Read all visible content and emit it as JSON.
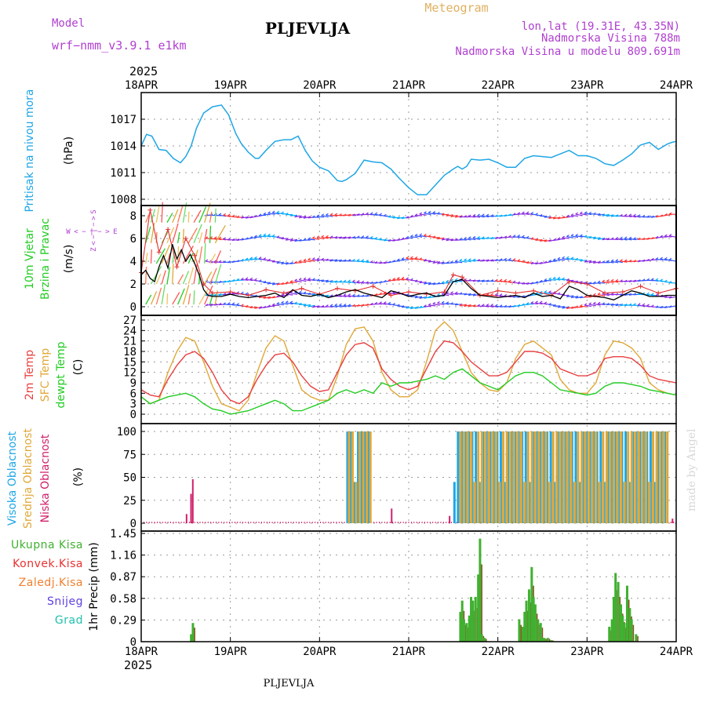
{
  "header": {
    "model_label": "Model",
    "model_value": "wrf−nmm_v3.9.1  e1km",
    "station": "PLJEVLJA",
    "meteogram": "Meteogram",
    "lonlat": "lon,lat (19.31E, 43.35N)",
    "altitude": "Nadmorska Visina 788m",
    "altitude_model": "Nadmorska Visina u modelu 809.691m",
    "watermark": "made by Angel",
    "footer_station": "PLJEVLJA"
  },
  "time_axis": {
    "year": "2025",
    "labels": [
      "18APR",
      "19APR",
      "20APR",
      "21APR",
      "22APR",
      "23APR",
      "24APR"
    ]
  },
  "colors": {
    "pressure": "#1ea6e6",
    "wind_speed": "#000000",
    "gust": "#e03030",
    "temp_2m": "#e84040",
    "temp_sfc": "#e0a838",
    "dewpoint": "#22cc22",
    "cloud_high": "#1ea6e6",
    "cloud_mid": "#e0a838",
    "cloud_low": "#d0206a",
    "precip_total": "#40b030",
    "precip_conv": "#e83030",
    "precip_frozen": "#f08030",
    "snow": "#6040e0",
    "hail": "#20c0b0",
    "station": "#000000",
    "model": "#b040d0",
    "meteogram": "#e0b060"
  },
  "chart_data": [
    {
      "type": "line",
      "panel": "pressure",
      "ylabel": [
        "Pritisak na nivou mora",
        "(hPa)"
      ],
      "ylim": [
        1008,
        1019.5
      ],
      "yticks": [
        "1008",
        "1011",
        "1014",
        "1017"
      ],
      "series": [
        {
          "x": [
            0,
            0.06,
            0.12,
            0.2,
            0.28,
            0.36,
            0.44,
            0.5,
            0.56,
            0.62,
            0.7,
            0.8,
            0.9,
            0.98,
            1.06,
            1.12,
            1.2,
            1.28,
            1.32,
            1.4,
            1.5,
            1.6,
            1.68,
            1.76,
            1.84,
            1.92,
            2.0,
            2.1,
            2.2,
            2.25,
            2.3,
            2.4,
            2.5,
            2.6,
            2.7,
            2.8,
            2.9,
            3.0,
            3.1,
            3.2,
            3.3,
            3.4,
            3.5,
            3.55,
            3.6,
            3.65,
            3.7,
            3.8,
            3.9,
            4.0,
            4.1,
            4.2,
            4.3,
            4.4,
            4.5,
            4.6,
            4.7,
            4.8,
            4.9,
            5.0,
            5.1,
            5.2,
            5.3,
            5.4,
            5.5,
            5.6,
            5.7,
            5.8,
            5.9,
            5.95,
            6.0
          ],
          "y": [
            1014,
            1015.3,
            1015.1,
            1013.6,
            1013.5,
            1012.6,
            1012.1,
            1012.8,
            1014.0,
            1016.0,
            1017.7,
            1018.4,
            1018.6,
            1017.5,
            1015.4,
            1014.3,
            1013.3,
            1012.6,
            1012.6,
            1013.5,
            1014.5,
            1014.7,
            1014.7,
            1015.1,
            1013.5,
            1012.3,
            1011.6,
            1011.2,
            1010.1,
            1010.0,
            1010.2,
            1010.9,
            1012.4,
            1012.2,
            1012.1,
            1011.4,
            1010.3,
            1009.3,
            1008.5,
            1008.5,
            1009.6,
            1010.7,
            1011.4,
            1011.7,
            1011.4,
            1011.7,
            1012.5,
            1012.4,
            1012.5,
            1012.1,
            1011.6,
            1011.6,
            1012.6,
            1012.9,
            1012.8,
            1012.7,
            1013.1,
            1013.5,
            1012.9,
            1012.9,
            1012.6,
            1012.0,
            1011.8,
            1012.4,
            1013.1,
            1014.1,
            1014.4,
            1013.6,
            1014.2,
            1014.4,
            1014.5
          ]
        }
      ]
    },
    {
      "type": "line",
      "panel": "wind",
      "ylabel": [
        "10m Vjetar",
        "Brzina i Pravac",
        "(m/s)"
      ],
      "compass_labels": [
        "W",
        "<",
        "−",
        "|",
        "−",
        ">",
        "E",
        "Z",
        "<",
        "−",
        "|",
        "−",
        ">",
        "S"
      ],
      "ylim": [
        -0.5,
        9.5
      ],
      "yticks": [
        "0",
        "2",
        "4",
        "6",
        "8"
      ],
      "series": [
        {
          "name": "speed",
          "x": [
            0,
            0.05,
            0.1,
            0.15,
            0.2,
            0.25,
            0.3,
            0.35,
            0.4,
            0.45,
            0.5,
            0.55,
            0.6,
            0.65,
            0.7,
            0.75,
            0.8,
            0.9,
            1.0,
            1.1,
            1.2,
            1.3,
            1.4,
            1.5,
            1.6,
            1.7,
            1.8,
            1.9,
            2.0,
            2.1,
            2.2,
            2.3,
            2.4,
            2.5,
            2.6,
            2.7,
            2.8,
            2.9,
            3.0,
            3.1,
            3.2,
            3.3,
            3.4,
            3.5,
            3.6,
            3.7,
            3.8,
            3.9,
            4.0,
            4.1,
            4.2,
            4.3,
            4.4,
            4.5,
            4.6,
            4.7,
            4.8,
            4.9,
            5.0,
            5.1,
            5.2,
            5.3,
            5.4,
            5.5,
            5.6,
            5.7,
            5.8,
            5.9,
            6.0
          ],
          "y": [
            2.8,
            3.2,
            2.5,
            2.2,
            3.5,
            4.5,
            3.4,
            5.5,
            4.2,
            5.0,
            4.0,
            4.6,
            3.8,
            2.8,
            1.5,
            1.0,
            0.9,
            0.9,
            1.1,
            0.9,
            0.8,
            0.9,
            1.0,
            1.2,
            0.8,
            1.5,
            1.0,
            0.9,
            1.1,
            0.8,
            1.0,
            1.3,
            1.5,
            1.2,
            1.0,
            0.8,
            1.4,
            1.2,
            0.9,
            1.1,
            1.2,
            0.9,
            1.0,
            2.2,
            2.4,
            1.6,
            1.0,
            0.9,
            0.8,
            0.9,
            1.0,
            0.8,
            1.2,
            0.9,
            1.0,
            0.7,
            1.8,
            1.5,
            1.0,
            0.9,
            0.8,
            0.6,
            1.0,
            1.4,
            1.2,
            0.9,
            0.9,
            1.0,
            1.0
          ]
        },
        {
          "name": "gust",
          "x": [
            0,
            0.1,
            0.2,
            0.3,
            0.4,
            0.5,
            0.6,
            0.7,
            0.8,
            1.0,
            1.2,
            1.4,
            1.6,
            1.8,
            2.0,
            2.2,
            2.4,
            2.6,
            2.8,
            3.0,
            3.2,
            3.4,
            3.5,
            3.6,
            3.8,
            4.0,
            4.2,
            4.4,
            4.6,
            4.8,
            5.0,
            5.2,
            5.4,
            5.6,
            5.8,
            6.0
          ],
          "y": [
            3.0,
            8.5,
            4.8,
            6.8,
            3.5,
            6.0,
            4.5,
            2.0,
            1.2,
            1.3,
            1.0,
            1.5,
            1.2,
            1.6,
            1.1,
            1.6,
            1.4,
            1.8,
            1.0,
            1.3,
            1.1,
            1.3,
            2.8,
            2.6,
            1.0,
            1.4,
            1.2,
            1.4,
            1.0,
            2.2,
            2.0,
            1.2,
            1.3,
            1.8,
            1.2,
            1.6
          ]
        }
      ]
    },
    {
      "type": "line",
      "panel": "temperature",
      "ylabel": [
        "2m Temp",
        "SFC Temp",
        "dewpt Temp",
        "(C)"
      ],
      "ylim": [
        -1.5,
        27.5
      ],
      "yticks": [
        "0",
        "3",
        "6",
        "9",
        "12",
        "15",
        "18",
        "21",
        "24",
        "27"
      ],
      "series": [
        {
          "name": "2m Temp",
          "x": [
            0,
            0.1,
            0.2,
            0.3,
            0.4,
            0.5,
            0.6,
            0.7,
            0.8,
            0.9,
            1.0,
            1.1,
            1.2,
            1.3,
            1.4,
            1.5,
            1.6,
            1.7,
            1.8,
            1.9,
            2.0,
            2.1,
            2.2,
            2.3,
            2.4,
            2.5,
            2.6,
            2.7,
            2.8,
            2.9,
            3.0,
            3.1,
            3.2,
            3.3,
            3.4,
            3.5,
            3.6,
            3.7,
            3.8,
            3.9,
            4.0,
            4.1,
            4.2,
            4.3,
            4.4,
            4.5,
            4.6,
            4.7,
            4.8,
            4.9,
            5.0,
            5.1,
            5.2,
            5.3,
            5.4,
            5.5,
            5.6,
            5.7,
            5.8,
            5.9,
            6.0
          ],
          "y": [
            7,
            5.5,
            5,
            10,
            14,
            17,
            18,
            16,
            12,
            7,
            4,
            3,
            5,
            10,
            14,
            17,
            17.5,
            15,
            11,
            8,
            6.5,
            7,
            12,
            17,
            20,
            20.5,
            19,
            13,
            10,
            8,
            7,
            8,
            13,
            18,
            21,
            20.5,
            18,
            15,
            13,
            11,
            11,
            12,
            15,
            18,
            18,
            17.5,
            16,
            13,
            12,
            11,
            11,
            12,
            16,
            16.5,
            16.5,
            16,
            14,
            11,
            10,
            9.5,
            9
          ]
        },
        {
          "name": "SFC Temp",
          "x": [
            0,
            0.1,
            0.2,
            0.3,
            0.4,
            0.5,
            0.6,
            0.7,
            0.8,
            0.9,
            1.0,
            1.1,
            1.2,
            1.3,
            1.4,
            1.5,
            1.6,
            1.7,
            1.8,
            1.9,
            2.0,
            2.1,
            2.2,
            2.3,
            2.4,
            2.5,
            2.6,
            2.7,
            2.8,
            2.9,
            3.0,
            3.1,
            3.2,
            3.3,
            3.4,
            3.5,
            3.6,
            3.7,
            3.8,
            3.9,
            4.0,
            4.1,
            4.2,
            4.3,
            4.4,
            4.5,
            4.6,
            4.7,
            4.8,
            4.9,
            5.0,
            5.1,
            5.2,
            5.3,
            5.4,
            5.5,
            5.6,
            5.7,
            5.8,
            5.9,
            6.0
          ],
          "y": [
            5,
            3,
            4,
            12,
            18,
            22,
            21,
            15,
            8,
            3,
            2,
            1,
            4,
            12,
            19,
            22.5,
            21,
            14,
            7,
            5,
            4,
            4,
            11,
            20,
            24.5,
            25,
            21,
            12,
            7,
            5,
            5,
            7,
            15,
            24,
            26.5,
            24,
            18,
            12,
            9,
            7,
            6.5,
            9,
            16,
            20,
            21,
            19,
            17,
            10,
            7,
            6,
            6,
            9,
            17,
            21,
            20.5,
            19,
            16,
            9,
            7,
            6,
            5.5
          ]
        },
        {
          "name": "dewpt Temp",
          "x": [
            0,
            0.1,
            0.2,
            0.3,
            0.4,
            0.5,
            0.6,
            0.7,
            0.8,
            0.9,
            1.0,
            1.1,
            1.2,
            1.3,
            1.4,
            1.5,
            1.6,
            1.7,
            1.8,
            1.9,
            2.0,
            2.1,
            2.2,
            2.3,
            2.4,
            2.5,
            2.6,
            2.7,
            2.8,
            2.9,
            3.0,
            3.1,
            3.2,
            3.3,
            3.4,
            3.5,
            3.6,
            3.7,
            3.8,
            3.9,
            4.0,
            4.1,
            4.2,
            4.3,
            4.4,
            4.5,
            4.6,
            4.7,
            4.8,
            4.9,
            5.0,
            5.1,
            5.2,
            5.3,
            5.4,
            5.5,
            5.6,
            5.7,
            5.8,
            5.9,
            6.0
          ],
          "y": [
            5,
            3,
            4,
            5,
            5.5,
            6,
            5,
            3,
            1.5,
            1,
            0,
            0.5,
            1,
            2,
            3,
            4,
            3,
            1,
            1,
            2,
            3,
            4,
            6,
            7,
            6,
            7,
            6,
            9,
            8,
            9,
            9,
            9.5,
            10,
            11,
            10,
            12,
            13,
            11,
            9,
            8,
            7,
            9,
            11,
            12,
            12,
            11,
            9,
            7,
            6.5,
            6,
            5.5,
            6,
            8,
            9,
            9,
            8.5,
            8,
            7,
            6.5,
            6,
            5.5
          ]
        }
      ]
    },
    {
      "type": "bar",
      "panel": "clouds",
      "ylabel": [
        "Visoka Oblacnost",
        "Srednja Oblacnost",
        "Niska Oblacnost",
        "(%)"
      ],
      "ylim": [
        0,
        100
      ],
      "yticks": [
        "0",
        "25",
        "50",
        "75",
        "100"
      ],
      "series": [
        {
          "name": "Visoka Oblacnost",
          "segments": [
            {
              "x0": 2.3,
              "x1": 2.55,
              "value": 100
            },
            {
              "x0": 3.5,
              "x1": 5.9,
              "value": 100
            }
          ]
        },
        {
          "name": "Srednja Oblacnost",
          "segments": [
            {
              "x0": 2.3,
              "x1": 2.55,
              "value": 100
            },
            {
              "x0": 3.55,
              "x1": 5.9,
              "value": 100
            }
          ]
        },
        {
          "name": "Niska Oblacnost",
          "points": [
            {
              "x": 0.5,
              "value": 10
            },
            {
              "x": 0.55,
              "value": 32
            },
            {
              "x": 0.57,
              "value": 48
            },
            {
              "x": 2.8,
              "value": 16
            },
            {
              "x": 3.45,
              "value": 8
            },
            {
              "x": 5.95,
              "value": 5
            }
          ]
        }
      ]
    },
    {
      "type": "bar",
      "panel": "precipitation",
      "ylabel": [
        "1hr Precip (mm)"
      ],
      "legend": [
        "Ukupna Kisa",
        "Konvek.Kisa",
        "Zaledj.Kisa",
        "Snijeg",
        "Grad"
      ],
      "ylim": [
        0,
        1.45
      ],
      "yticks": [
        "0",
        "0.29",
        "0.58",
        "0.87",
        "1.16",
        "1.45"
      ],
      "series": [
        {
          "name": "Ukupna Kisa",
          "x": [
            0.56,
            0.58,
            3.58,
            3.6,
            3.62,
            3.65,
            3.68,
            3.7,
            3.72,
            3.75,
            3.78,
            3.8,
            3.82,
            3.85,
            4.24,
            4.28,
            4.3,
            4.32,
            4.35,
            4.38,
            4.4,
            4.42,
            4.45,
            4.48,
            4.5,
            4.52,
            4.56,
            4.6,
            5.25,
            5.28,
            5.3,
            5.32,
            5.35,
            5.38,
            5.4,
            5.42,
            5.45,
            5.48,
            5.5,
            5.55
          ],
          "y": [
            0.1,
            0.25,
            0.4,
            0.55,
            0.3,
            0.25,
            0.35,
            0.6,
            0.55,
            0.6,
            0.9,
            1.38,
            0.1,
            0.05,
            0.3,
            0.2,
            0.4,
            0.55,
            0.7,
            1.0,
            0.6,
            0.5,
            0.3,
            0.25,
            0.05,
            0.05,
            0.05,
            0.02,
            0.2,
            0.3,
            0.6,
            0.92,
            0.8,
            0.5,
            0.35,
            0.25,
            0.75,
            0.45,
            0.3,
            0.1
          ]
        }
      ]
    }
  ]
}
